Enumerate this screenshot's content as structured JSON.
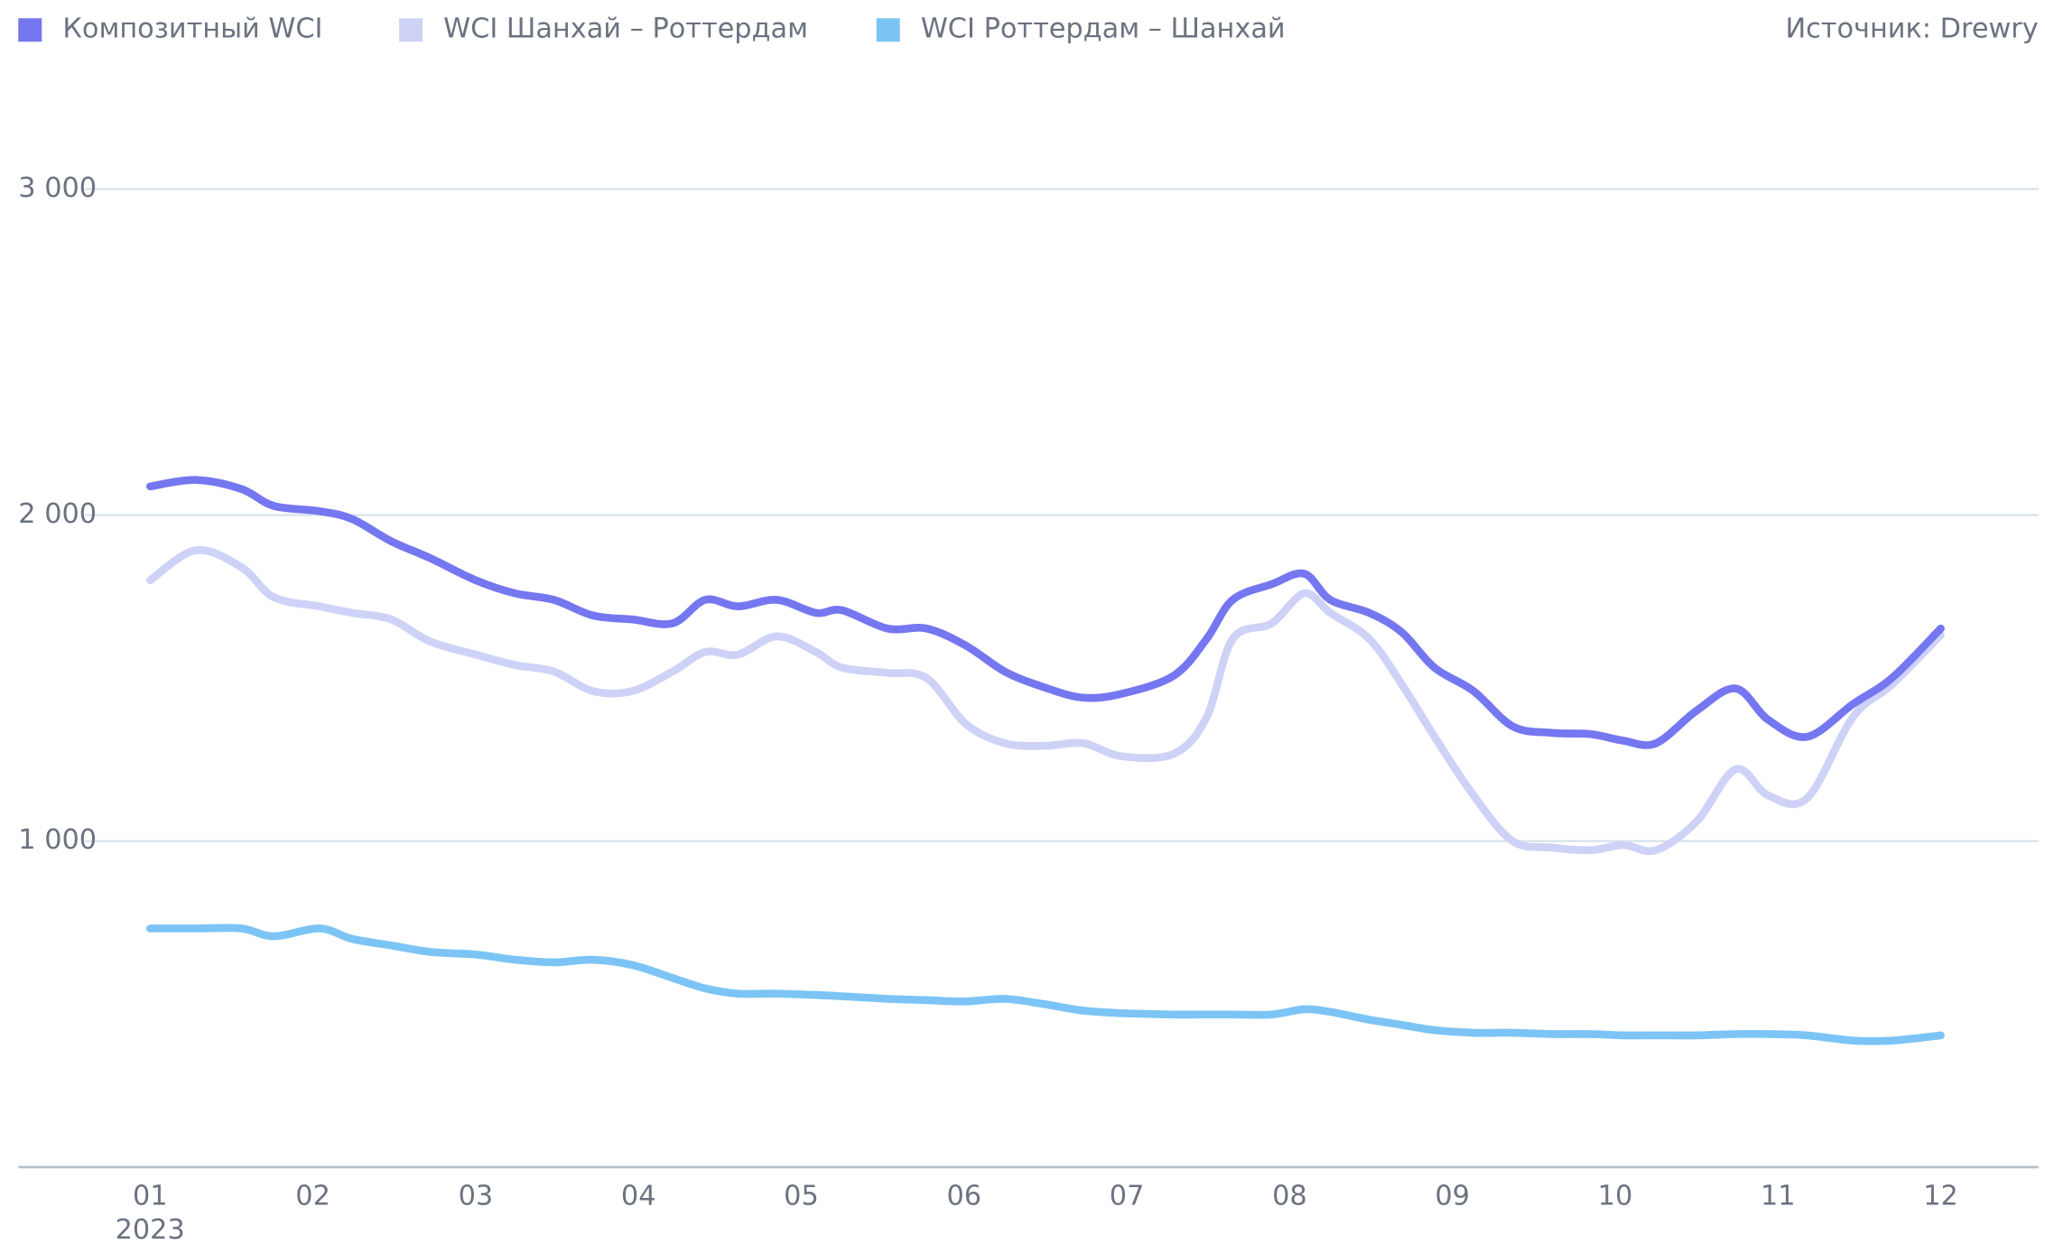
{
  "chart_data": {
    "type": "line",
    "source": "Источник: Drewry",
    "x_year_label": "2023",
    "xlim": [
      0.19,
      12.6
    ],
    "xticks": [
      {
        "value": 1,
        "label": "01"
      },
      {
        "value": 2,
        "label": "02"
      },
      {
        "value": 3,
        "label": "03"
      },
      {
        "value": 4,
        "label": "04"
      },
      {
        "value": 5,
        "label": "05"
      },
      {
        "value": 6,
        "label": "06"
      },
      {
        "value": 7,
        "label": "07"
      },
      {
        "value": 8,
        "label": "08"
      },
      {
        "value": 9,
        "label": "09"
      },
      {
        "value": 10,
        "label": "10"
      },
      {
        "value": 11,
        "label": "11"
      },
      {
        "value": 12,
        "label": "12"
      }
    ],
    "ylim": [
      0,
      3000
    ],
    "yticks": [
      {
        "value": 1000,
        "label": "1 000"
      },
      {
        "value": 2000,
        "label": "2 000"
      },
      {
        "value": 3000,
        "label": "3 000"
      }
    ],
    "grid": true,
    "x": [
      1.0,
      1.28,
      1.56,
      1.76,
      2.04,
      2.24,
      2.48,
      2.72,
      3.0,
      3.24,
      3.48,
      3.72,
      3.96,
      4.21,
      4.41,
      4.61,
      4.85,
      5.09,
      5.25,
      5.53,
      5.77,
      6.01,
      6.25,
      6.49,
      6.73,
      6.97,
      7.29,
      7.49,
      7.65,
      7.89,
      8.09,
      8.25,
      8.49,
      8.69,
      8.89,
      9.13,
      9.37,
      9.61,
      9.85,
      10.05,
      10.25,
      10.5,
      10.74,
      10.94,
      11.18,
      11.46,
      11.7,
      12.0
    ],
    "series": [
      {
        "name": "Композитный WCI",
        "color": "#7577f0",
        "values": [
          2088,
          2108,
          2080,
          2028,
          2012,
          1988,
          1920,
          1868,
          1800,
          1760,
          1740,
          1692,
          1680,
          1668,
          1740,
          1720,
          1740,
          1700,
          1708,
          1652,
          1652,
          1600,
          1520,
          1472,
          1440,
          1452,
          1508,
          1620,
          1740,
          1788,
          1820,
          1740,
          1700,
          1640,
          1532,
          1460,
          1352,
          1332,
          1328,
          1308,
          1300,
          1400,
          1468,
          1372,
          1320,
          1420,
          1500,
          1652
        ]
      },
      {
        "name": "WCI Шанхай – Роттердам",
        "color": "#cfd2f7",
        "values": [
          1800,
          1892,
          1840,
          1748,
          1720,
          1700,
          1680,
          1612,
          1572,
          1540,
          1520,
          1460,
          1460,
          1520,
          1580,
          1572,
          1628,
          1580,
          1532,
          1516,
          1500,
          1360,
          1300,
          1292,
          1300,
          1260,
          1268,
          1380,
          1620,
          1668,
          1760,
          1700,
          1620,
          1480,
          1320,
          1140,
          1000,
          980,
          972,
          988,
          972,
          1060,
          1220,
          1140,
          1132,
          1380,
          1480,
          1632
        ]
      },
      {
        "name": "WCI Роттердам – Шанхай",
        "color": "#7cc4f5",
        "values": [
          732,
          732,
          732,
          708,
          732,
          700,
          680,
          660,
          652,
          636,
          628,
          636,
          620,
          580,
          548,
          532,
          532,
          528,
          524,
          516,
          512,
          508,
          516,
          500,
          480,
          472,
          468,
          468,
          468,
          468,
          484,
          476,
          452,
          436,
          420,
          412,
          412,
          408,
          408,
          404,
          404,
          404,
          408,
          408,
          404,
          388,
          388,
          404
        ]
      }
    ]
  }
}
